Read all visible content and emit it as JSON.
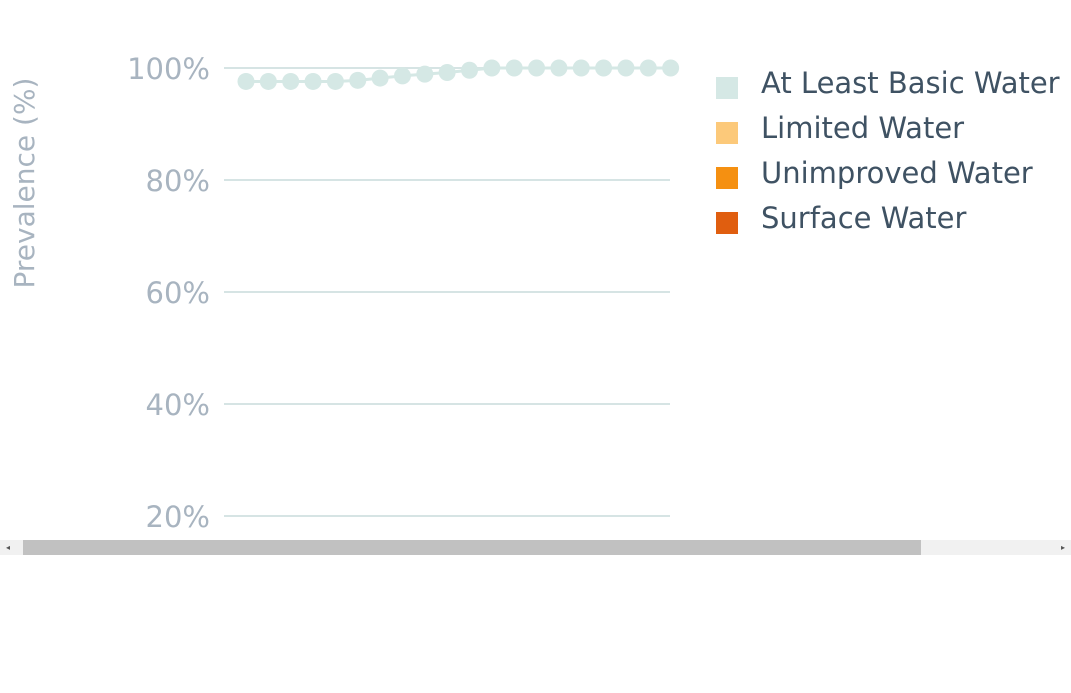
{
  "chart_data": {
    "type": "line",
    "ylabel": "Prevalence (%)",
    "y_tick_labels": [
      "100%",
      "80%",
      "60%",
      "40%",
      "20%"
    ],
    "y_ticks": [
      100,
      80,
      60,
      40,
      20
    ],
    "ylim": [
      20,
      100
    ],
    "grid": true,
    "legend_position": "right",
    "series": [
      {
        "name": "At Least Basic Water",
        "color": "#d5e8e5",
        "values": [
          97.6,
          97.6,
          97.6,
          97.6,
          97.6,
          97.8,
          98.2,
          98.6,
          98.9,
          99.2,
          99.6,
          100,
          100,
          100,
          100,
          100,
          100,
          100,
          100,
          100
        ]
      }
    ],
    "legend": [
      {
        "label": "At Least Basic Water",
        "color": "#d5e8e5"
      },
      {
        "label": "Limited Water",
        "color": "#fcc97a"
      },
      {
        "label": "Unimproved Water",
        "color": "#f59011"
      },
      {
        "label": "Surface Water",
        "color": "#e05e0f"
      }
    ]
  },
  "scrollbar": {
    "left_arrow": "◂",
    "right_arrow": "▸"
  }
}
